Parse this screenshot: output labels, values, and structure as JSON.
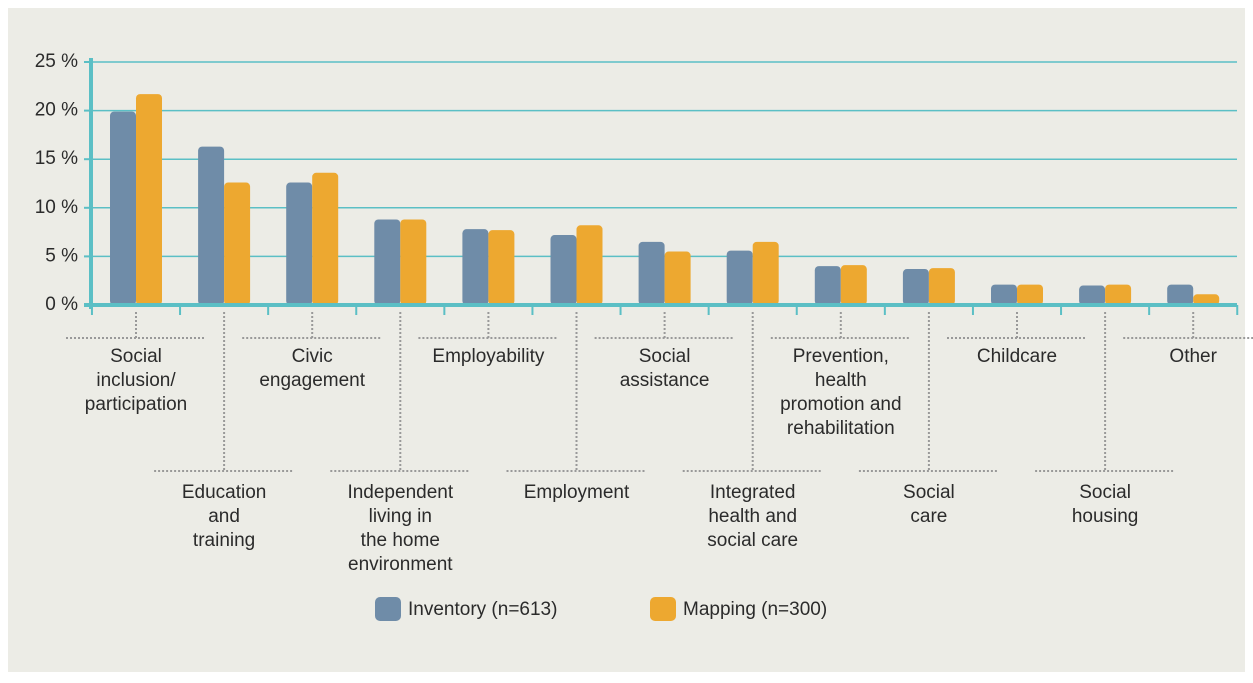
{
  "chart_data": {
    "type": "bar",
    "categories": [
      "Social\ninclusion/\nparticipation",
      "Education\nand\ntraining",
      "Civic\nengagement",
      "Independent\nliving in\nthe home\nenvironment",
      "Employability",
      "Employment",
      "Social\nassistance",
      "Integrated\nhealth and\nsocial care",
      "Prevention,\nhealth\npromotion and\nrehabilitation",
      "Social\ncare",
      "Childcare",
      "Social\nhousing",
      "Other"
    ],
    "series": [
      {
        "name": "Inventory (n=613)",
        "color": "#6f8ca8",
        "values": [
          19.9,
          16.3,
          12.6,
          8.8,
          7.8,
          7.2,
          6.5,
          5.6,
          4.0,
          3.7,
          2.1,
          2.0,
          2.1
        ]
      },
      {
        "name": "Mapping (n=300)",
        "color": "#eda830",
        "values": [
          21.7,
          12.6,
          13.6,
          8.8,
          7.7,
          8.2,
          5.5,
          6.5,
          4.1,
          3.8,
          2.1,
          2.1,
          1.1
        ]
      }
    ],
    "ylim": [
      0,
      25
    ],
    "yticks": [
      {
        "value": 0,
        "label": "0 %"
      },
      {
        "value": 5,
        "label": "5 %"
      },
      {
        "value": 10,
        "label": "10 %"
      },
      {
        "value": 15,
        "label": "15 %"
      },
      {
        "value": 20,
        "label": "20 %"
      },
      {
        "value": 25,
        "label": "25 %"
      }
    ],
    "grid": true,
    "legend": "bottom"
  }
}
